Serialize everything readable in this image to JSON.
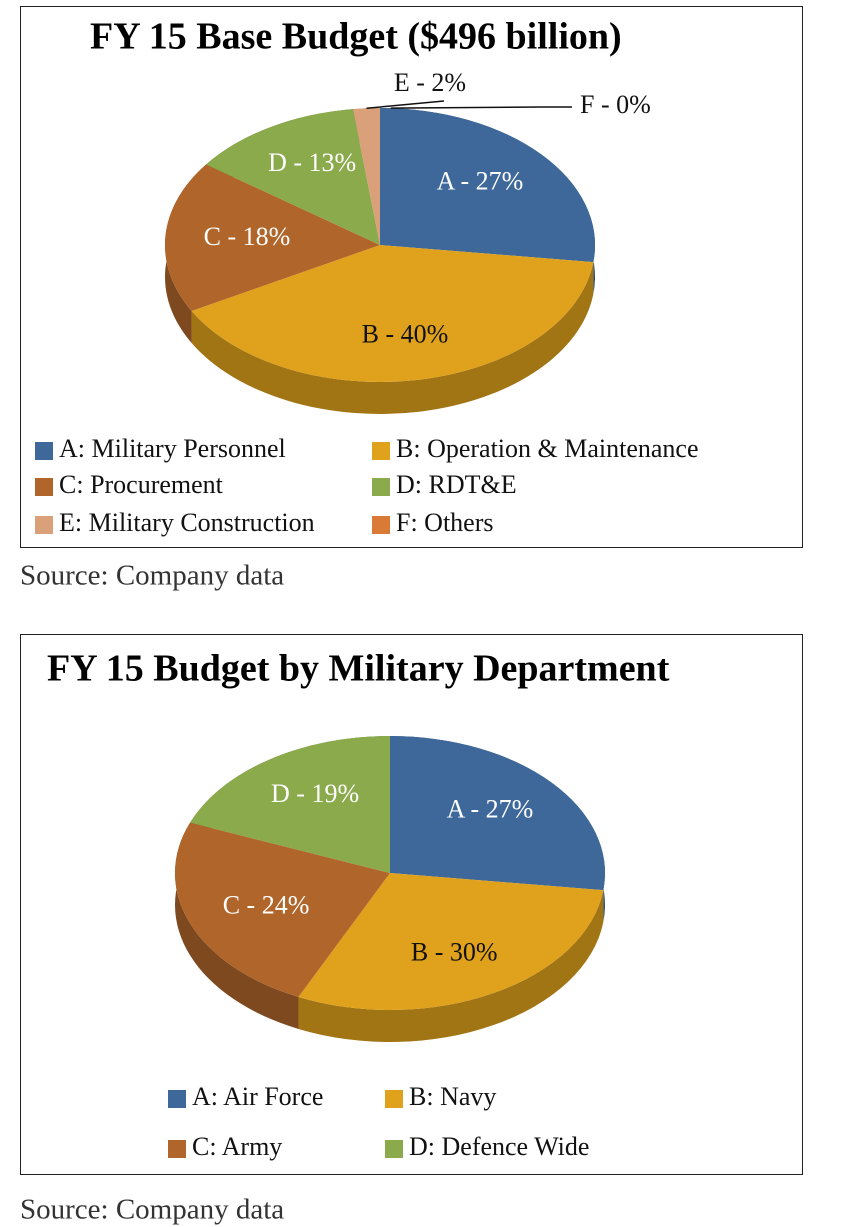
{
  "chart_data": [
    {
      "type": "pie",
      "title": "FY 15 Base Budget ($496 billion)",
      "categories": [
        "A: Military Personnel",
        "B: Operation & Maintenance",
        "C: Procurement",
        "D: RDT&E",
        "E: Military Construction",
        "F: Others"
      ],
      "values": [
        27,
        40,
        18,
        13,
        2,
        0
      ],
      "value_labels": [
        "A - 27%",
        "B - 40%",
        "C - 18%",
        "D - 13%",
        "E - 2%",
        "F - 0%"
      ],
      "colors": [
        "#3e6899",
        "#e0a21c",
        "#b0652b",
        "#8aaa4c",
        "#d9a07a",
        "#d97a36"
      ],
      "label_colors": [
        "#ffffff",
        "#111111",
        "#ffffff",
        "#ffffff",
        "#111111",
        "#111111"
      ],
      "source": "Source: Company data"
    },
    {
      "type": "pie",
      "title": "FY 15 Budget by Military Department",
      "categories": [
        "A: Air Force",
        "B: Navy",
        "C: Army",
        "D: Defence Wide"
      ],
      "values": [
        27,
        30,
        24,
        19
      ],
      "value_labels": [
        "A - 27%",
        "B - 30%",
        "C - 24%",
        "D - 19%"
      ],
      "colors": [
        "#3e6899",
        "#e0a21c",
        "#b0652b",
        "#8aaa4c"
      ],
      "label_colors": [
        "#ffffff",
        "#111111",
        "#ffffff",
        "#ffffff"
      ],
      "source": "Source: Company data"
    }
  ]
}
